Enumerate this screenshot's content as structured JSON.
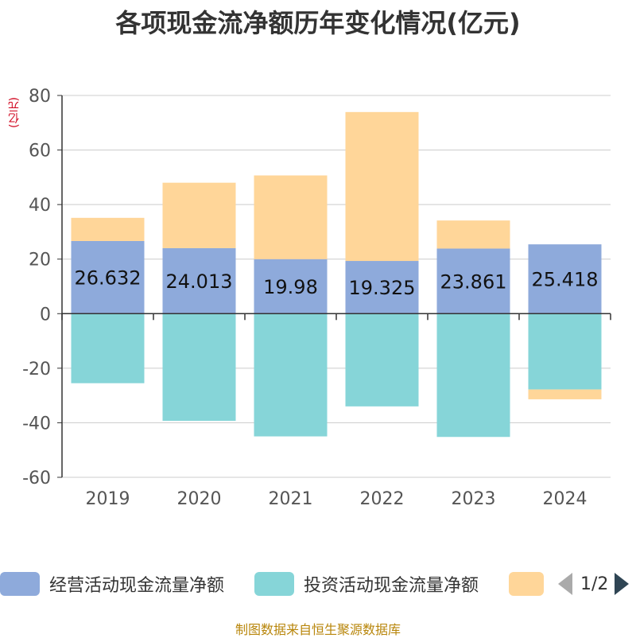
{
  "title": "各项现金流净额历年变化情况(亿元)",
  "unit_label": "(亿元)",
  "legend": {
    "items": [
      {
        "label": "经营活动现金流量净额",
        "color": "#8eaadb"
      },
      {
        "label": "投资活动现金流量净额",
        "color": "#86d5d8"
      },
      {
        "label": "",
        "color": "#ffd699"
      }
    ],
    "page": "1/2"
  },
  "footer": "制图数据来自恒生聚源数据库",
  "chart_data": {
    "type": "bar",
    "stacked": true,
    "categories": [
      "2019",
      "2020",
      "2021",
      "2022",
      "2023",
      "2024"
    ],
    "ylim": [
      -60,
      80
    ],
    "yticks": [
      80,
      60,
      40,
      20,
      0,
      -20,
      -40,
      -60
    ],
    "series": [
      {
        "name": "经营活动现金流量净额",
        "color": "#8eaadb",
        "values": [
          26.632,
          24.013,
          19.98,
          19.325,
          23.861,
          25.418
        ],
        "labels": [
          "26.632",
          "24.013",
          "19.98",
          "19.325",
          "23.861",
          "25.418"
        ]
      },
      {
        "name": "投资活动现金流量净额",
        "color": "#86d5d8",
        "values": [
          -25.5,
          -39.3,
          -45.0,
          -34.0,
          -45.2,
          -27.8
        ]
      },
      {
        "name": "",
        "color": "#ffd699",
        "values": [
          8.5,
          24.0,
          30.7,
          54.6,
          10.3,
          -3.6
        ]
      }
    ]
  }
}
